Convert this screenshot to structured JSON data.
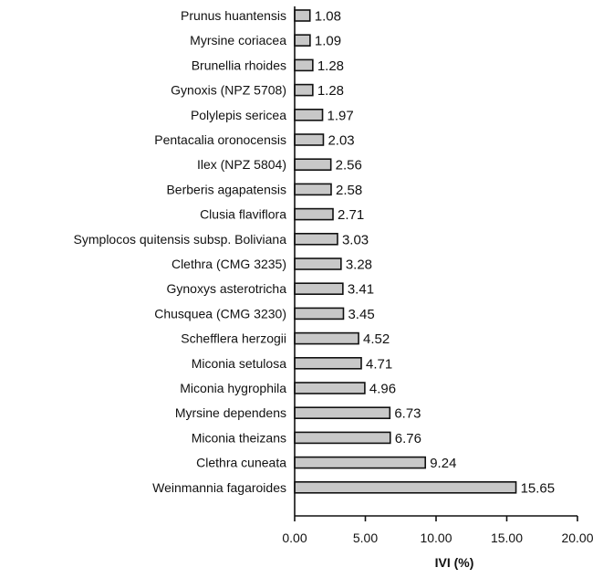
{
  "chart_data": {
    "type": "bar",
    "orientation": "horizontal",
    "title": "",
    "xlabel": "IVI (%)",
    "ylabel": "",
    "xlim": [
      0,
      20
    ],
    "xticks": [
      0,
      5,
      10,
      15,
      20
    ],
    "xtick_labels": [
      "0.00",
      "5.00",
      "10.00",
      "15.00",
      "20.00"
    ],
    "grid": false,
    "legend": "none",
    "bar_color": "#c8c8c8",
    "bar_stroke": "#111111",
    "categories": [
      "Prunus huantensis",
      "Myrsine coriacea",
      "Brunellia rhoides",
      "Gynoxis (NPZ 5708)",
      "Polylepis sericea",
      "Pentacalia oronocensis",
      "Ilex (NPZ 5804)",
      "Berberis agapatensis",
      "Clusia flaviflora",
      "Symplocos quitensis subsp. Boliviana",
      "Clethra (CMG 3235)",
      "Gynoxys asterotricha",
      "Chusquea (CMG 3230)",
      "Schefflera herzogii",
      "Miconia setulosa",
      "Miconia hygrophila",
      "Myrsine dependens",
      "Miconia theizans",
      "Clethra cuneata",
      "Weinmannia fagaroides"
    ],
    "values": [
      1.08,
      1.09,
      1.28,
      1.28,
      1.97,
      2.03,
      2.56,
      2.58,
      2.71,
      3.03,
      3.28,
      3.41,
      3.45,
      4.52,
      4.71,
      4.96,
      6.73,
      6.76,
      9.24,
      15.65
    ],
    "value_labels": [
      "1.08",
      "1.09",
      "1.28",
      "1.28",
      "1.97",
      "2.03",
      "2.56",
      "2.58",
      "2.71",
      "3.03",
      "3.28",
      "3.41",
      "3.45",
      "4.52",
      "4.71",
      "4.96",
      "6.73",
      "6.76",
      "9.24",
      "15.65"
    ]
  }
}
